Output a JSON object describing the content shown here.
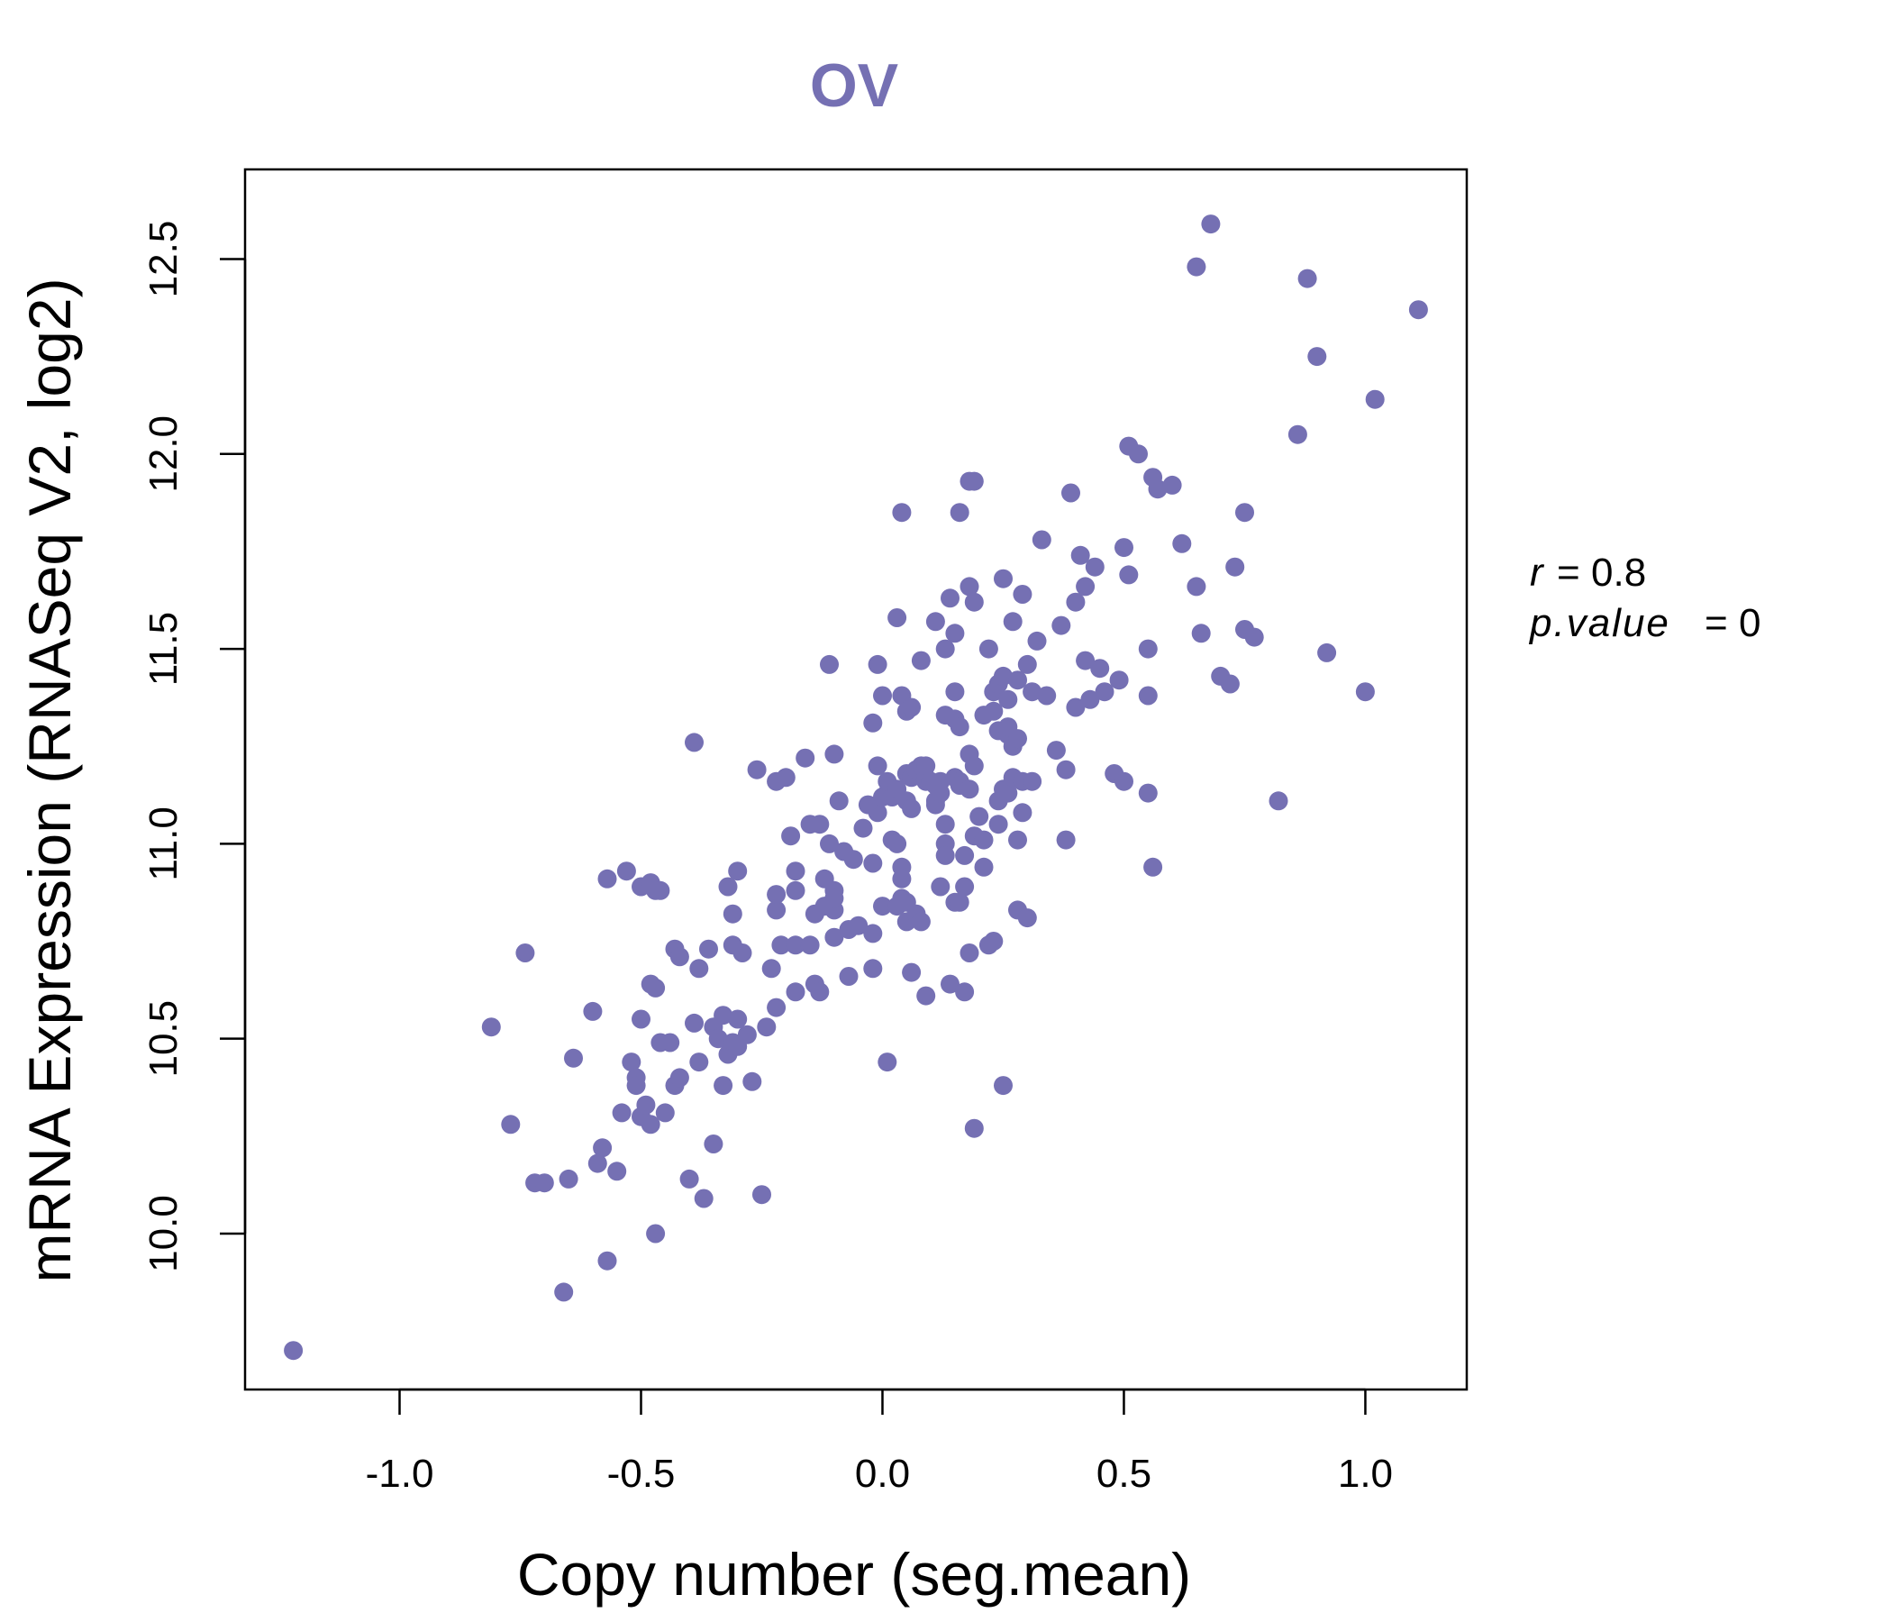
{
  "chart_data": {
    "type": "scatter",
    "title": "OV",
    "xlabel": "Copy number (seg.mean)",
    "ylabel": "mRNA Expression (RNASeq V2, log2)",
    "xlim": [
      -1.32,
      1.21
    ],
    "ylim": [
      9.6,
      12.73
    ],
    "x_ticks": [
      -1.0,
      -0.5,
      0.0,
      0.5,
      1.0
    ],
    "x_tick_labels": [
      "-1.0",
      "-0.5",
      "0.0",
      "0.5",
      "1.0"
    ],
    "y_ticks": [
      10.0,
      10.5,
      11.0,
      11.5,
      12.0,
      12.5
    ],
    "y_tick_labels": [
      "10.0",
      "10.5",
      "11.0",
      "11.5",
      "12.0",
      "12.5"
    ],
    "grid": false,
    "color": "#7570B3",
    "stats": {
      "r_label": "r",
      "r_value": "0.8",
      "p_label": "p.value",
      "p_value": "0"
    },
    "points": [
      [
        -1.22,
        9.7
      ],
      [
        -0.81,
        10.53
      ],
      [
        -0.77,
        10.28
      ],
      [
        -0.74,
        10.72
      ],
      [
        -0.72,
        10.13
      ],
      [
        -0.7,
        10.13
      ],
      [
        -0.66,
        9.85
      ],
      [
        -0.65,
        10.14
      ],
      [
        -0.64,
        10.45
      ],
      [
        -0.6,
        10.57
      ],
      [
        -0.58,
        10.22
      ],
      [
        -0.59,
        10.18
      ],
      [
        -0.57,
        10.91
      ],
      [
        -0.57,
        9.93
      ],
      [
        -0.55,
        10.16
      ],
      [
        -0.54,
        10.31
      ],
      [
        -0.53,
        10.93
      ],
      [
        -0.52,
        10.44
      ],
      [
        -0.51,
        10.4
      ],
      [
        -0.51,
        10.38
      ],
      [
        -0.5,
        10.89
      ],
      [
        -0.5,
        10.55
      ],
      [
        -0.5,
        10.3
      ],
      [
        -0.49,
        10.33
      ],
      [
        -0.48,
        10.64
      ],
      [
        -0.48,
        10.28
      ],
      [
        -0.48,
        10.9
      ],
      [
        -0.47,
        10.88
      ],
      [
        -0.47,
        10.63
      ],
      [
        -0.47,
        10.0
      ],
      [
        -0.46,
        10.88
      ],
      [
        -0.46,
        10.49
      ],
      [
        -0.45,
        10.31
      ],
      [
        -0.44,
        10.49
      ],
      [
        -0.43,
        10.38
      ],
      [
        -0.43,
        10.73
      ],
      [
        -0.42,
        10.71
      ],
      [
        -0.42,
        10.4
      ],
      [
        -0.4,
        10.14
      ],
      [
        -0.39,
        10.54
      ],
      [
        -0.39,
        11.26
      ],
      [
        -0.38,
        10.44
      ],
      [
        -0.38,
        10.68
      ],
      [
        -0.37,
        10.09
      ],
      [
        -0.36,
        10.73
      ],
      [
        -0.35,
        10.53
      ],
      [
        -0.35,
        10.23
      ],
      [
        -0.34,
        10.5
      ],
      [
        -0.33,
        10.56
      ],
      [
        -0.33,
        10.38
      ],
      [
        -0.32,
        10.46
      ],
      [
        -0.32,
        10.89
      ],
      [
        -0.31,
        10.49
      ],
      [
        -0.31,
        10.82
      ],
      [
        -0.31,
        10.74
      ],
      [
        -0.3,
        10.55
      ],
      [
        -0.3,
        10.48
      ],
      [
        -0.3,
        10.93
      ],
      [
        -0.29,
        10.72
      ],
      [
        -0.28,
        10.51
      ],
      [
        -0.27,
        10.39
      ],
      [
        -0.26,
        11.19
      ],
      [
        -0.25,
        10.1
      ],
      [
        -0.24,
        10.53
      ],
      [
        -0.23,
        10.68
      ],
      [
        -0.22,
        11.16
      ],
      [
        -0.22,
        10.83
      ],
      [
        -0.22,
        10.87
      ],
      [
        -0.22,
        10.58
      ],
      [
        -0.21,
        10.74
      ],
      [
        -0.2,
        11.17
      ],
      [
        -0.19,
        11.02
      ],
      [
        -0.18,
        10.88
      ],
      [
        -0.18,
        10.62
      ],
      [
        -0.18,
        10.74
      ],
      [
        -0.18,
        10.93
      ],
      [
        -0.16,
        11.22
      ],
      [
        -0.15,
        10.74
      ],
      [
        -0.15,
        11.05
      ],
      [
        -0.14,
        10.64
      ],
      [
        -0.14,
        10.82
      ],
      [
        -0.13,
        10.62
      ],
      [
        -0.13,
        11.05
      ],
      [
        -0.12,
        10.84
      ],
      [
        -0.12,
        10.91
      ],
      [
        -0.11,
        11.0
      ],
      [
        -0.11,
        11.46
      ],
      [
        -0.1,
        10.88
      ],
      [
        -0.1,
        10.83
      ],
      [
        -0.1,
        10.86
      ],
      [
        -0.1,
        11.23
      ],
      [
        -0.1,
        10.76
      ],
      [
        -0.09,
        11.11
      ],
      [
        -0.08,
        10.98
      ],
      [
        -0.07,
        10.78
      ],
      [
        -0.07,
        10.66
      ],
      [
        -0.06,
        10.96
      ],
      [
        -0.05,
        10.79
      ],
      [
        -0.04,
        11.04
      ],
      [
        -0.03,
        11.1
      ],
      [
        -0.02,
        10.68
      ],
      [
        -0.02,
        11.31
      ],
      [
        -0.02,
        10.95
      ],
      [
        -0.02,
        10.77
      ],
      [
        -0.01,
        11.46
      ],
      [
        -0.01,
        11.2
      ],
      [
        -0.01,
        11.08
      ],
      [
        0.0,
        11.12
      ],
      [
        0.0,
        11.38
      ],
      [
        0.0,
        10.84
      ],
      [
        0.01,
        10.44
      ],
      [
        0.01,
        11.13
      ],
      [
        0.01,
        11.16
      ],
      [
        0.02,
        11.12
      ],
      [
        0.02,
        11.01
      ],
      [
        0.03,
        11.0
      ],
      [
        0.03,
        11.14
      ],
      [
        0.03,
        10.84
      ],
      [
        0.03,
        11.58
      ],
      [
        0.04,
        10.94
      ],
      [
        0.04,
        11.85
      ],
      [
        0.04,
        11.38
      ],
      [
        0.04,
        10.91
      ],
      [
        0.04,
        10.86
      ],
      [
        0.05,
        11.18
      ],
      [
        0.05,
        10.8
      ],
      [
        0.05,
        11.11
      ],
      [
        0.05,
        10.85
      ],
      [
        0.05,
        11.34
      ],
      [
        0.06,
        10.67
      ],
      [
        0.06,
        11.35
      ],
      [
        0.06,
        11.17
      ],
      [
        0.06,
        11.09
      ],
      [
        0.07,
        10.82
      ],
      [
        0.07,
        11.19
      ],
      [
        0.08,
        10.8
      ],
      [
        0.08,
        11.47
      ],
      [
        0.08,
        11.2
      ],
      [
        0.09,
        11.16
      ],
      [
        0.09,
        10.61
      ],
      [
        0.09,
        11.17
      ],
      [
        0.09,
        11.2
      ],
      [
        0.1,
        11.16
      ],
      [
        0.11,
        11.15
      ],
      [
        0.11,
        11.57
      ],
      [
        0.11,
        11.11
      ],
      [
        0.11,
        11.1
      ],
      [
        0.12,
        11.16
      ],
      [
        0.12,
        10.89
      ],
      [
        0.12,
        11.13
      ],
      [
        0.13,
        11.0
      ],
      [
        0.13,
        11.05
      ],
      [
        0.13,
        10.97
      ],
      [
        0.13,
        11.5
      ],
      [
        0.13,
        11.33
      ],
      [
        0.14,
        10.64
      ],
      [
        0.14,
        11.63
      ],
      [
        0.15,
        11.54
      ],
      [
        0.15,
        10.85
      ],
      [
        0.15,
        11.17
      ],
      [
        0.15,
        11.32
      ],
      [
        0.15,
        11.39
      ],
      [
        0.16,
        11.3
      ],
      [
        0.16,
        11.16
      ],
      [
        0.16,
        11.85
      ],
      [
        0.16,
        11.15
      ],
      [
        0.16,
        10.85
      ],
      [
        0.17,
        10.89
      ],
      [
        0.17,
        10.62
      ],
      [
        0.17,
        10.97
      ],
      [
        0.18,
        11.23
      ],
      [
        0.18,
        11.66
      ],
      [
        0.18,
        10.72
      ],
      [
        0.18,
        11.93
      ],
      [
        0.18,
        11.14
      ],
      [
        0.19,
        11.62
      ],
      [
        0.19,
        11.93
      ],
      [
        0.19,
        10.27
      ],
      [
        0.19,
        11.2
      ],
      [
        0.19,
        11.02
      ],
      [
        0.2,
        11.07
      ],
      [
        0.21,
        11.33
      ],
      [
        0.21,
        11.01
      ],
      [
        0.21,
        10.94
      ],
      [
        0.22,
        10.74
      ],
      [
        0.22,
        11.5
      ],
      [
        0.23,
        10.75
      ],
      [
        0.23,
        11.34
      ],
      [
        0.23,
        11.39
      ],
      [
        0.24,
        11.29
      ],
      [
        0.24,
        11.11
      ],
      [
        0.24,
        11.41
      ],
      [
        0.24,
        11.05
      ],
      [
        0.25,
        10.38
      ],
      [
        0.25,
        11.68
      ],
      [
        0.25,
        11.43
      ],
      [
        0.25,
        11.14
      ],
      [
        0.26,
        11.37
      ],
      [
        0.26,
        11.28
      ],
      [
        0.26,
        11.13
      ],
      [
        0.26,
        11.3
      ],
      [
        0.27,
        11.57
      ],
      [
        0.27,
        11.17
      ],
      [
        0.27,
        11.25
      ],
      [
        0.28,
        11.01
      ],
      [
        0.28,
        10.83
      ],
      [
        0.28,
        11.42
      ],
      [
        0.28,
        11.27
      ],
      [
        0.29,
        11.08
      ],
      [
        0.29,
        11.16
      ],
      [
        0.29,
        11.64
      ],
      [
        0.3,
        10.81
      ],
      [
        0.3,
        11.46
      ],
      [
        0.31,
        11.16
      ],
      [
        0.31,
        11.39
      ],
      [
        0.32,
        11.52
      ],
      [
        0.33,
        11.78
      ],
      [
        0.34,
        11.38
      ],
      [
        0.36,
        11.24
      ],
      [
        0.37,
        11.56
      ],
      [
        0.38,
        11.01
      ],
      [
        0.38,
        11.19
      ],
      [
        0.39,
        11.9
      ],
      [
        0.4,
        11.35
      ],
      [
        0.4,
        11.62
      ],
      [
        0.41,
        11.74
      ],
      [
        0.42,
        11.66
      ],
      [
        0.42,
        11.47
      ],
      [
        0.43,
        11.37
      ],
      [
        0.44,
        11.71
      ],
      [
        0.45,
        11.45
      ],
      [
        0.46,
        11.39
      ],
      [
        0.48,
        11.18
      ],
      [
        0.49,
        11.42
      ],
      [
        0.5,
        11.16
      ],
      [
        0.5,
        11.76
      ],
      [
        0.51,
        11.69
      ],
      [
        0.51,
        12.02
      ],
      [
        0.53,
        12.0
      ],
      [
        0.55,
        11.13
      ],
      [
        0.55,
        11.5
      ],
      [
        0.55,
        11.38
      ],
      [
        0.56,
        11.94
      ],
      [
        0.56,
        10.94
      ],
      [
        0.57,
        11.91
      ],
      [
        0.6,
        11.92
      ],
      [
        0.62,
        11.77
      ],
      [
        0.65,
        11.66
      ],
      [
        0.65,
        12.48
      ],
      [
        0.66,
        11.54
      ],
      [
        0.68,
        12.59
      ],
      [
        0.7,
        11.43
      ],
      [
        0.72,
        11.41
      ],
      [
        0.73,
        11.71
      ],
      [
        0.75,
        11.85
      ],
      [
        0.75,
        11.55
      ],
      [
        0.77,
        11.53
      ],
      [
        0.82,
        11.11
      ],
      [
        0.86,
        12.05
      ],
      [
        0.88,
        12.45
      ],
      [
        0.9,
        12.25
      ],
      [
        0.92,
        11.49
      ],
      [
        1.0,
        11.39
      ],
      [
        1.02,
        12.14
      ],
      [
        1.11,
        12.37
      ]
    ]
  }
}
